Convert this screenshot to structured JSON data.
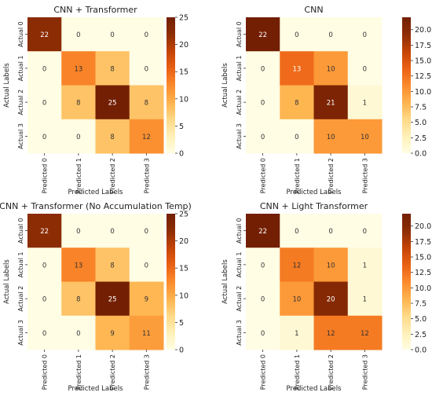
{
  "chart_data": [
    {
      "type": "heatmap",
      "title": "CNN + Transformer",
      "xlabel": "Predicted Labels",
      "ylabel": "Actual Labels",
      "x_categories": [
        "Predicted 0",
        "Predicted 1",
        "Predicted 2",
        "Predicted 3"
      ],
      "y_categories": [
        "Actual 0",
        "Actual 1",
        "Actual 2",
        "Actual 3"
      ],
      "values": [
        [
          22,
          0,
          0,
          0
        ],
        [
          0,
          13,
          8,
          0
        ],
        [
          0,
          8,
          25,
          8
        ],
        [
          0,
          0,
          8,
          12
        ]
      ],
      "colorbar": {
        "min": 0,
        "max": 25,
        "ticks": [
          "0",
          "5",
          "10",
          "15",
          "20",
          "25"
        ]
      }
    },
    {
      "type": "heatmap",
      "title": "CNN",
      "xlabel": "Predicted Labels",
      "ylabel": "Actual Labels",
      "x_categories": [
        "Predicted 0",
        "Predicted 1",
        "Predicted 2",
        "Predicted 3"
      ],
      "y_categories": [
        "Actual 0",
        "Actual 1",
        "Actual 2",
        "Actual 3"
      ],
      "values": [
        [
          22,
          0,
          0,
          0
        ],
        [
          0,
          13,
          10,
          0
        ],
        [
          0,
          8,
          21,
          1
        ],
        [
          0,
          0,
          10,
          10
        ]
      ],
      "colorbar": {
        "min": 0,
        "max": 22,
        "ticks": [
          "0.0",
          "2.5",
          "5.0",
          "7.5",
          "10.0",
          "12.5",
          "15.0",
          "17.5",
          "20.0"
        ]
      }
    },
    {
      "type": "heatmap",
      "title": "CNN + Transformer (No Accumulation Temp)",
      "xlabel": "Predicted Labels",
      "ylabel": "Actual Labels",
      "x_categories": [
        "Predicted 0",
        "Predicted 1",
        "Predicted 2",
        "Predicted 3"
      ],
      "y_categories": [
        "Actual 0",
        "Actual 1",
        "Actual 2",
        "Actual 3"
      ],
      "values": [
        [
          22,
          0,
          0,
          0
        ],
        [
          0,
          13,
          8,
          0
        ],
        [
          0,
          8,
          25,
          9
        ],
        [
          0,
          0,
          9,
          11
        ]
      ],
      "colorbar": {
        "min": 0,
        "max": 25,
        "ticks": [
          "0",
          "5",
          "10",
          "15",
          "20",
          "25"
        ]
      }
    },
    {
      "type": "heatmap",
      "title": "CNN + Light Transformer",
      "xlabel": "Predicted Labels",
      "ylabel": "Actual Labels",
      "x_categories": [
        "Predicted 0",
        "Predicted 1",
        "Predicted 2",
        "Predicted 3"
      ],
      "y_categories": [
        "Actual 0",
        "Actual 1",
        "Actual 2",
        "Actual 3"
      ],
      "values": [
        [
          22,
          0,
          0,
          0
        ],
        [
          0,
          12,
          10,
          1
        ],
        [
          0,
          10,
          20,
          1
        ],
        [
          0,
          1,
          12,
          12
        ]
      ],
      "colorbar": {
        "min": 0,
        "max": 22,
        "ticks": [
          "0.0",
          "2.5",
          "5.0",
          "7.5",
          "10.0",
          "12.5",
          "15.0",
          "17.5",
          "20.0"
        ]
      }
    }
  ],
  "colormap": [
    "#fffde4",
    "#fff0b8",
    "#fed987",
    "#feb24c",
    "#fb8a2c",
    "#ea6014",
    "#c34305",
    "#8c2d04",
    "#731f03"
  ]
}
